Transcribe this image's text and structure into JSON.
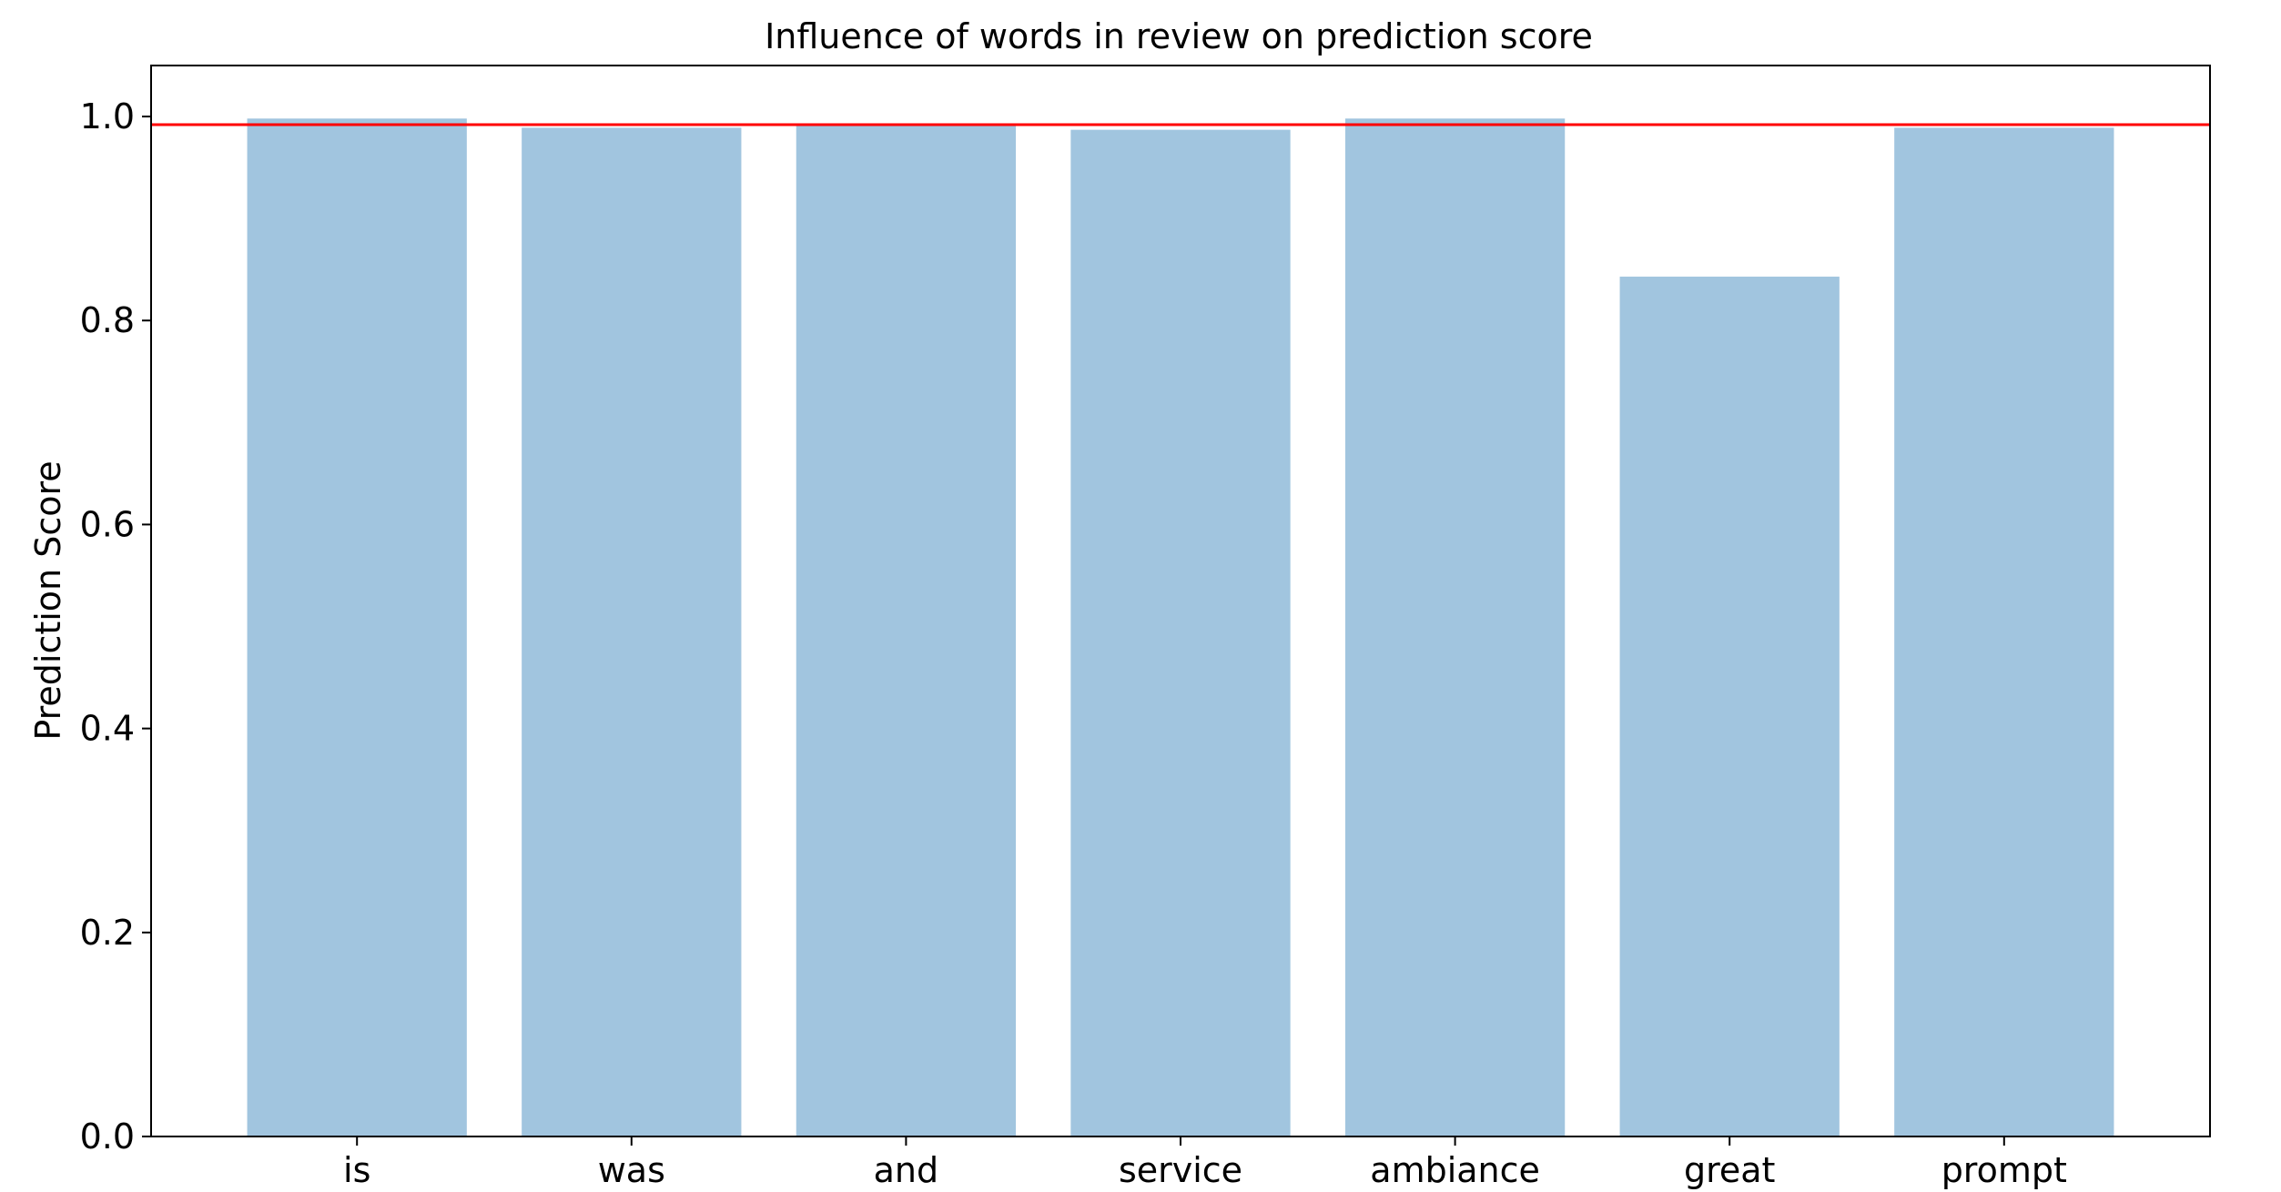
{
  "chart_data": {
    "type": "bar",
    "title": "Influence of words in review on prediction score",
    "xlabel": "",
    "ylabel": "Prediction Score",
    "categories": [
      "is",
      "was",
      "and",
      "service",
      "ambiance",
      "great",
      "prompt"
    ],
    "values": [
      0.998,
      0.989,
      0.991,
      0.987,
      0.998,
      0.843,
      0.989
    ],
    "ylim": [
      0.0,
      1.05
    ],
    "yticks": [
      0.0,
      0.2,
      0.4,
      0.6,
      0.8,
      1.0
    ],
    "ytick_labels": [
      "0.0",
      "0.2",
      "0.4",
      "0.6",
      "0.8",
      "1.0"
    ],
    "reference_line": {
      "y": 0.992,
      "color": "#ff0000"
    },
    "bar_color": "#a1c5df",
    "grid": false,
    "legend": "none"
  }
}
